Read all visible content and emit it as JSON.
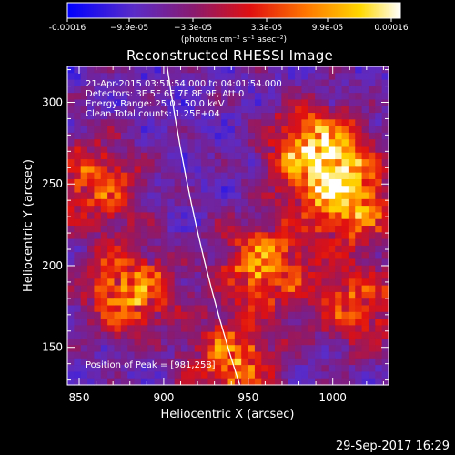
{
  "colorbar": {
    "tick_labels": [
      "-0.00016",
      "−9.9e-05",
      "−3.3e-05",
      "3.3e-05",
      "9.9e-05",
      "0.00016"
    ],
    "unit_label": "(photons cm⁻² s⁻¹ asec⁻²)"
  },
  "chart_data": {
    "type": "heatmap",
    "title": "Reconstructed RHESSI Image",
    "xlabel": "Heliocentric X (arcsec)",
    "ylabel": "Heliocentric Y (arcsec)",
    "xlim": [
      843,
      1033
    ],
    "ylim": [
      127,
      322
    ],
    "x_ticks": [
      850,
      900,
      950,
      1000
    ],
    "y_ticks": [
      150,
      200,
      250,
      300
    ],
    "colormap": "rainbow-hot (blue→purple→red→orange→yellow→white)",
    "value_range": [
      -0.00016,
      0.00016
    ],
    "peak_position": [
      981,
      258
    ],
    "limb_curve": {
      "x_top": 902,
      "x_bottom": 945,
      "color": "white"
    },
    "bright_regions": [
      {
        "x": 990,
        "y": 270,
        "level": 1.0
      },
      {
        "x": 1010,
        "y": 240,
        "level": 0.85
      },
      {
        "x": 960,
        "y": 200,
        "level": 0.8
      },
      {
        "x": 880,
        "y": 185,
        "level": 0.8
      },
      {
        "x": 860,
        "y": 250,
        "level": 0.65
      },
      {
        "x": 940,
        "y": 140,
        "level": 0.75
      },
      {
        "x": 1015,
        "y": 175,
        "level": 0.6
      }
    ]
  },
  "annotations": {
    "time_range": "21-Apr-2015 03:51:54.000 to 04:01:54.000",
    "detectors": "Detectors: 3F 5F 6F 7F 8F 9F, Att 0",
    "energy": "Energy Range: 25.0 - 50.0 keV",
    "method": "Clean     Total counts: 1.25E+04",
    "peak": "Position of Peak = [981,258]"
  },
  "footer": {
    "timestamp": "29-Sep-2017 16:29"
  }
}
